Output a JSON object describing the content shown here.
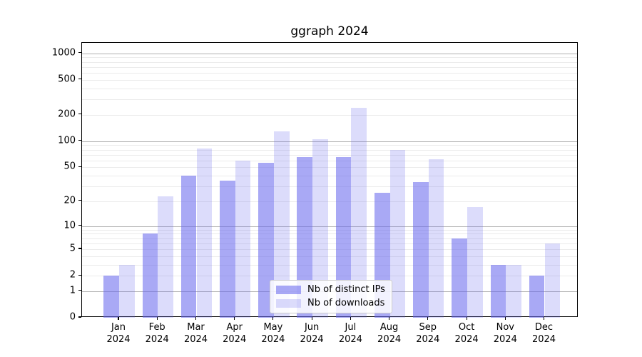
{
  "title": "ggraph 2024",
  "chart_data": {
    "type": "bar",
    "title": "ggraph 2024",
    "categories": [
      "Jan",
      "Feb",
      "Mar",
      "Apr",
      "May",
      "Jun",
      "Jul",
      "Aug",
      "Sep",
      "Oct",
      "Nov",
      "Dec"
    ],
    "year_label": "2024",
    "series": [
      {
        "name": "Nb of distinct IPs",
        "values": [
          2,
          8,
          40,
          35,
          56,
          66,
          66,
          25,
          34,
          7,
          3,
          2
        ]
      },
      {
        "name": "Nb of downloads",
        "values": [
          3,
          23,
          82,
          60,
          130,
          106,
          240,
          80,
          62,
          17,
          3,
          6
        ]
      }
    ],
    "yscale": "log1p",
    "ylim": [
      0,
      1320
    ],
    "yticks": [
      0,
      1,
      2,
      5,
      10,
      20,
      50,
      100,
      200,
      500,
      1000
    ],
    "grid": true,
    "legend_position": "lower center",
    "colors": {
      "bar_ips": "rgba(102,102,238,0.56)",
      "bar_downloads": "rgba(102,102,238,0.23)",
      "grid_major": "#b0b0b0",
      "grid_minor": "#ebebeb",
      "axis": "#000000",
      "text": "#000000"
    }
  }
}
